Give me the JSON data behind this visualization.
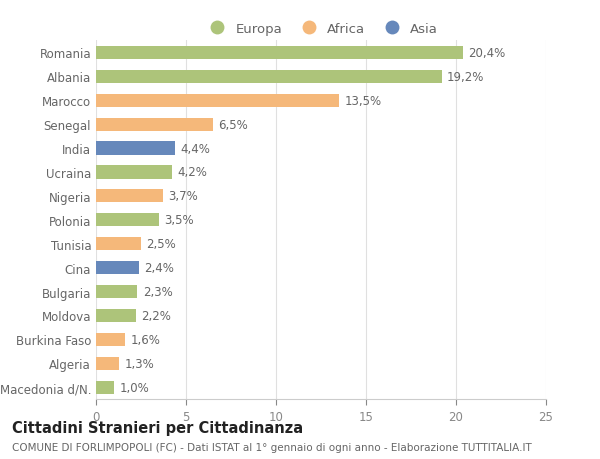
{
  "categories": [
    "Romania",
    "Albania",
    "Marocco",
    "Senegal",
    "India",
    "Ucraina",
    "Nigeria",
    "Polonia",
    "Tunisia",
    "Cina",
    "Bulgaria",
    "Moldova",
    "Burkina Faso",
    "Algeria",
    "Macedonia d/N."
  ],
  "values": [
    20.4,
    19.2,
    13.5,
    6.5,
    4.4,
    4.2,
    3.7,
    3.5,
    2.5,
    2.4,
    2.3,
    2.2,
    1.6,
    1.3,
    1.0
  ],
  "labels": [
    "20,4%",
    "19,2%",
    "13,5%",
    "6,5%",
    "4,4%",
    "4,2%",
    "3,7%",
    "3,5%",
    "2,5%",
    "2,4%",
    "2,3%",
    "2,2%",
    "1,6%",
    "1,3%",
    "1,0%"
  ],
  "continents": [
    "Europa",
    "Europa",
    "Africa",
    "Africa",
    "Asia",
    "Europa",
    "Africa",
    "Europa",
    "Africa",
    "Asia",
    "Europa",
    "Europa",
    "Africa",
    "Africa",
    "Europa"
  ],
  "colors": {
    "Europa": "#adc47a",
    "Africa": "#f5b87a",
    "Asia": "#6688bb"
  },
  "legend_labels": [
    "Europa",
    "Africa",
    "Asia"
  ],
  "title": "Cittadini Stranieri per Cittadinanza",
  "subtitle": "COMUNE DI FORLIMPOPOLI (FC) - Dati ISTAT al 1° gennaio di ogni anno - Elaborazione TUTTITALIA.IT",
  "xlim": [
    0,
    25
  ],
  "xticks": [
    0,
    5,
    10,
    15,
    20,
    25
  ],
  "background_color": "#ffffff",
  "bar_height": 0.55,
  "grid_color": "#e0e0e0",
  "label_fontsize": 8.5,
  "tick_fontsize": 8.5,
  "title_fontsize": 10.5,
  "subtitle_fontsize": 7.5
}
